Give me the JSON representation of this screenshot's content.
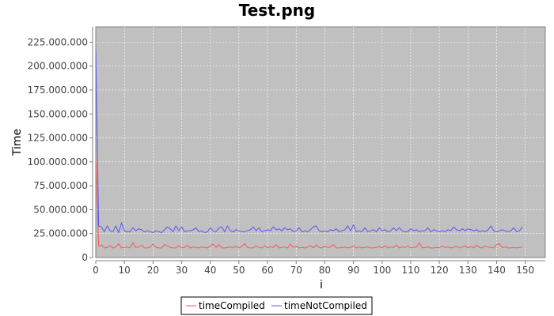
{
  "chart_data": {
    "type": "line",
    "title": "Test.png",
    "xlabel": "i",
    "ylabel": "Time",
    "xlim": [
      0,
      157
    ],
    "ylim": [
      0,
      241000000
    ],
    "x_ticks": [
      0,
      10,
      20,
      30,
      40,
      50,
      60,
      70,
      80,
      90,
      100,
      110,
      120,
      130,
      140,
      150
    ],
    "y_ticks": [
      0,
      25000000,
      50000000,
      75000000,
      100000000,
      125000000,
      150000000,
      175000000,
      200000000,
      225000000
    ],
    "y_tick_labels": [
      "0",
      "25.000.000",
      "50.000.000",
      "75.000.000",
      "100.000.000",
      "125.000.000",
      "150.000.000",
      "175.000.000",
      "200.000.000",
      "225.000.000"
    ],
    "grid": true,
    "legend_position": "bottom",
    "plot_background": "#c0c0c0",
    "series": [
      {
        "name": "timeCompiled",
        "color": "#ff5555",
        "x": [
          0,
          1,
          2,
          3,
          4,
          5,
          6,
          7,
          8,
          9,
          10,
          11,
          12,
          13,
          14,
          15,
          16,
          17,
          18,
          19,
          20,
          21,
          22,
          23,
          24,
          25,
          26,
          27,
          28,
          29,
          30,
          31,
          32,
          33,
          34,
          35,
          36,
          37,
          38,
          39,
          40,
          41,
          42,
          43,
          44,
          45,
          46,
          47,
          48,
          49,
          50,
          51,
          52,
          53,
          54,
          55,
          56,
          57,
          58,
          59,
          60,
          61,
          62,
          63,
          64,
          65,
          66,
          67,
          68,
          69,
          70,
          71,
          72,
          73,
          74,
          75,
          76,
          77,
          78,
          79,
          80,
          81,
          82,
          83,
          84,
          85,
          86,
          87,
          88,
          89,
          90,
          91,
          92,
          93,
          94,
          95,
          96,
          97,
          98,
          99,
          100,
          101,
          102,
          103,
          104,
          105,
          106,
          107,
          108,
          109,
          110,
          111,
          112,
          113,
          114,
          115,
          116,
          117,
          118,
          119,
          120,
          121,
          122,
          123,
          124,
          125,
          126,
          127,
          128,
          129,
          130,
          131,
          132,
          133,
          134,
          135,
          136,
          137,
          138,
          139,
          140,
          141,
          142,
          143,
          144,
          145,
          146,
          147,
          148,
          149
        ],
        "values": [
          105000000,
          12000000,
          13000000,
          10000000,
          10500000,
          12500000,
          10000000,
          11000000,
          14500000,
          10000000,
          10500000,
          11000000,
          10000000,
          15500000,
          10500000,
          11000000,
          13000000,
          10000000,
          10000000,
          11000000,
          14000000,
          10500000,
          10000000,
          10000000,
          13500000,
          12000000,
          10500000,
          10000000,
          10000000,
          12500000,
          10000000,
          10500000,
          13000000,
          10000000,
          11000000,
          10500000,
          10000000,
          11000000,
          10500000,
          10000000,
          12000000,
          14000000,
          10500000,
          13500000,
          10000000,
          10000000,
          10500000,
          11000000,
          10000000,
          12000000,
          10000000,
          11500000,
          14500000,
          10500000,
          10000000,
          10000000,
          12000000,
          10500000,
          10000000,
          12500000,
          10000000,
          11500000,
          10500000,
          13500000,
          10000000,
          10500000,
          11000000,
          10000000,
          14000000,
          10500000,
          12000000,
          10000000,
          10500000,
          10000000,
          11000000,
          12500000,
          10000000,
          13000000,
          10500000,
          10000000,
          12000000,
          10500000,
          11000000,
          13500000,
          10000000,
          10000000,
          10500000,
          11000000,
          10000000,
          10500000,
          12500000,
          10000000,
          11000000,
          10000000,
          10500000,
          11000000,
          10000000,
          10000000,
          10500000,
          11500000,
          10000000,
          12500000,
          10000000,
          11000000,
          10500000,
          13000000,
          10000000,
          11000000,
          10500000,
          12000000,
          10000000,
          10500000,
          11000000,
          15500000,
          10000000,
          10500000,
          11000000,
          10000000,
          10000000,
          10500000,
          10000000,
          12000000,
          10500000,
          11000000,
          10000000,
          10500000,
          12000000,
          10000000,
          11000000,
          12500000,
          10000000,
          11500000,
          10000000,
          13000000,
          10500000,
          10000000,
          12000000,
          11000000,
          10500000,
          10000000,
          13500000,
          14500000,
          10500000,
          11000000,
          10000000,
          10000000,
          10500000,
          10000000,
          10500000,
          11000000
        ],
        "values_note": ""
      },
      {
        "name": "timeNotCompiled",
        "color": "#5555ff",
        "x": [
          0,
          1,
          2,
          3,
          4,
          5,
          6,
          7,
          8,
          9,
          10,
          11,
          12,
          13,
          14,
          15,
          16,
          17,
          18,
          19,
          20,
          21,
          22,
          23,
          24,
          25,
          26,
          27,
          28,
          29,
          30,
          31,
          32,
          33,
          34,
          35,
          36,
          37,
          38,
          39,
          40,
          41,
          42,
          43,
          44,
          45,
          46,
          47,
          48,
          49,
          50,
          51,
          52,
          53,
          54,
          55,
          56,
          57,
          58,
          59,
          60,
          61,
          62,
          63,
          64,
          65,
          66,
          67,
          68,
          69,
          70,
          71,
          72,
          73,
          74,
          75,
          76,
          77,
          78,
          79,
          80,
          81,
          82,
          83,
          84,
          85,
          86,
          87,
          88,
          89,
          90,
          91,
          92,
          93,
          94,
          95,
          96,
          97,
          98,
          99,
          100,
          101,
          102,
          103,
          104,
          105,
          106,
          107,
          108,
          109,
          110,
          111,
          112,
          113,
          114,
          115,
          116,
          117,
          118,
          119,
          120,
          121,
          122,
          123,
          124,
          125,
          126,
          127,
          128,
          129,
          130,
          131,
          132,
          133,
          134,
          135,
          136,
          137,
          138,
          139,
          140,
          141,
          142,
          143,
          144,
          145,
          146,
          147,
          148,
          149
        ],
        "values": [
          218000000,
          33000000,
          32000000,
          27000000,
          33000000,
          28000000,
          27000000,
          33000000,
          26000000,
          36000000,
          28000000,
          27000000,
          27000000,
          31000000,
          28000000,
          30000000,
          29000000,
          27000000,
          28000000,
          27000000,
          26000000,
          28000000,
          27000000,
          26000000,
          29000000,
          32000000,
          30000000,
          27000000,
          33000000,
          28000000,
          32000000,
          27000000,
          28000000,
          28000000,
          29000000,
          31000000,
          27000000,
          28000000,
          26000000,
          27000000,
          31000000,
          28000000,
          27000000,
          31000000,
          32000000,
          27000000,
          33000000,
          28000000,
          27000000,
          29000000,
          28000000,
          27000000,
          27000000,
          28000000,
          29000000,
          32000000,
          28000000,
          31000000,
          27000000,
          28000000,
          29000000,
          28000000,
          32000000,
          29000000,
          30000000,
          28000000,
          31000000,
          29000000,
          30000000,
          27000000,
          28000000,
          31000000,
          27000000,
          28000000,
          27000000,
          29000000,
          32000000,
          33000000,
          28000000,
          27000000,
          28000000,
          27000000,
          29000000,
          28000000,
          30000000,
          27000000,
          28000000,
          29000000,
          33000000,
          28000000,
          34000000,
          27000000,
          28000000,
          27000000,
          31000000,
          27000000,
          28000000,
          29000000,
          27000000,
          31000000,
          28000000,
          29000000,
          27000000,
          28000000,
          31000000,
          28000000,
          31000000,
          28000000,
          27000000,
          27000000,
          30000000,
          28000000,
          29000000,
          27000000,
          28000000,
          28000000,
          31000000,
          27000000,
          29000000,
          28000000,
          27000000,
          28000000,
          27000000,
          29000000,
          28000000,
          32000000,
          29000000,
          28000000,
          30000000,
          28000000,
          30000000,
          29000000,
          28000000,
          29000000,
          27000000,
          28000000,
          27000000,
          29000000,
          33000000,
          28000000,
          27000000,
          28000000,
          29000000,
          28000000,
          27000000,
          28000000,
          31000000,
          27000000,
          28000000,
          32000000
        ],
        "values_note": ""
      }
    ]
  }
}
